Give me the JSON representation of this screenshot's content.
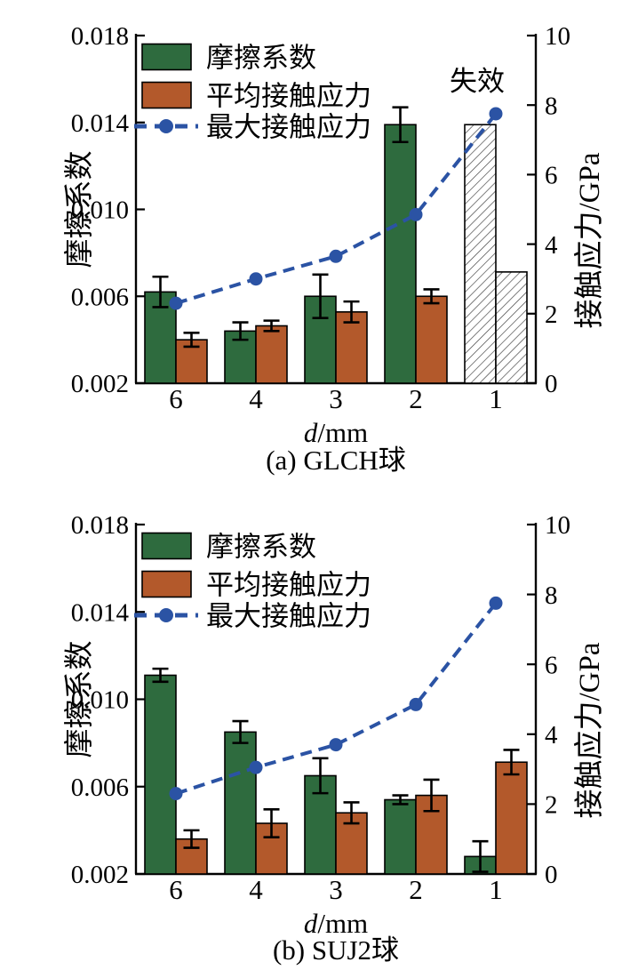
{
  "colors": {
    "friction_bar": "#2e6b3e",
    "avg_stress_bar": "#b3592b",
    "max_stress_line": "#2b53a4",
    "axis": "#000000",
    "hatch_line": "#3a3a3a"
  },
  "chart_data": [
    {
      "type": "bar+line",
      "caption": "(a) GLCH球",
      "xlabel_italic": "d",
      "xlabel_rest": "/mm",
      "left_axis_label": "摩擦系数",
      "right_axis_label": "接触应力/GPa",
      "annotation": "失效",
      "categories": [
        "6",
        "4",
        "3",
        "2",
        "1"
      ],
      "left_ticks": [
        "0.018",
        "0.014",
        "0.010",
        "0.006",
        "0.002"
      ],
      "right_ticks": [
        "10",
        "8",
        "6",
        "4",
        "2",
        "0"
      ],
      "left_range": [
        0.002,
        0.018
      ],
      "right_range": [
        0,
        10
      ],
      "legend": [
        {
          "label": "摩擦系数",
          "swatch": "bar-green"
        },
        {
          "label": "平均接触应力",
          "swatch": "bar-brown"
        },
        {
          "label": "最大接触应力",
          "swatch": "line-dot"
        }
      ],
      "series": [
        {
          "name": "摩擦系数",
          "type": "bar",
          "axis": "left",
          "color_key": "friction_bar",
          "values": [
            0.0062,
            0.0044,
            0.006,
            0.0139,
            0.0139
          ],
          "errors": [
            0.0007,
            0.0004,
            0.001,
            0.0008,
            null
          ],
          "failed": [
            false,
            false,
            false,
            false,
            true
          ]
        },
        {
          "name": "平均接触应力",
          "type": "bar",
          "axis": "right",
          "color_key": "avg_stress_bar",
          "values": [
            1.25,
            1.65,
            2.05,
            2.5,
            3.2
          ],
          "errors": [
            0.2,
            0.15,
            0.3,
            0.2,
            null
          ],
          "failed": [
            false,
            false,
            false,
            false,
            true
          ]
        },
        {
          "name": "最大接触应力",
          "type": "line",
          "axis": "right",
          "color_key": "max_stress_line",
          "values": [
            2.3,
            3.0,
            3.65,
            4.85,
            7.75
          ]
        }
      ]
    },
    {
      "type": "bar+line",
      "caption": "(b) SUJ2球",
      "xlabel_italic": "d",
      "xlabel_rest": "/mm",
      "left_axis_label": "摩擦系数",
      "right_axis_label": "接触应力/GPa",
      "annotation": null,
      "categories": [
        "6",
        "4",
        "3",
        "2",
        "1"
      ],
      "left_ticks": [
        "0.018",
        "0.014",
        "0.010",
        "0.006",
        "0.002"
      ],
      "right_ticks": [
        "10",
        "8",
        "6",
        "4",
        "2",
        "0"
      ],
      "left_range": [
        0.002,
        0.018
      ],
      "right_range": [
        0,
        10
      ],
      "legend": [
        {
          "label": "摩擦系数",
          "swatch": "bar-green"
        },
        {
          "label": "平均接触应力",
          "swatch": "bar-brown"
        },
        {
          "label": "最大接触应力",
          "swatch": "line-dot"
        }
      ],
      "series": [
        {
          "name": "摩擦系数",
          "type": "bar",
          "axis": "left",
          "color_key": "friction_bar",
          "values": [
            0.0111,
            0.0085,
            0.0065,
            0.0054,
            0.0028
          ],
          "errors": [
            0.0003,
            0.0005,
            0.0008,
            0.0002,
            0.0007
          ],
          "failed": [
            false,
            false,
            false,
            false,
            false
          ]
        },
        {
          "name": "平均接触应力",
          "type": "bar",
          "axis": "right",
          "color_key": "avg_stress_bar",
          "values": [
            1.0,
            1.45,
            1.75,
            2.25,
            3.2
          ],
          "errors": [
            0.25,
            0.4,
            0.3,
            0.45,
            0.35
          ],
          "failed": [
            false,
            false,
            false,
            false,
            false
          ]
        },
        {
          "name": "最大接触应力",
          "type": "line",
          "axis": "right",
          "color_key": "max_stress_line",
          "values": [
            2.3,
            3.05,
            3.7,
            4.85,
            7.75
          ]
        }
      ]
    }
  ]
}
